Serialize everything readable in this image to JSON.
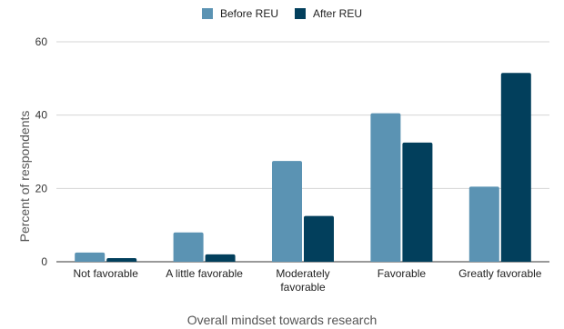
{
  "chart_data": {
    "type": "bar",
    "title": "",
    "xlabel": "Overall mindset towards research",
    "ylabel": "Percent of respondents",
    "ylim": [
      0,
      60
    ],
    "yticks": [
      0,
      20,
      40,
      60
    ],
    "grid": true,
    "legend_position": "top",
    "categories": [
      [
        "Not favorable"
      ],
      [
        "A little favorable"
      ],
      [
        "Moderately",
        "favorable"
      ],
      [
        "Favorable"
      ],
      [
        "Greatly favorable"
      ]
    ],
    "series": [
      {
        "name": "Before REU",
        "color": "#5b93b3",
        "values": [
          2.5,
          8,
          27.5,
          40.5,
          20.5
        ]
      },
      {
        "name": "After REU",
        "color": "#023f5c",
        "values": [
          1,
          2,
          12.5,
          32.5,
          51.5
        ]
      }
    ]
  }
}
